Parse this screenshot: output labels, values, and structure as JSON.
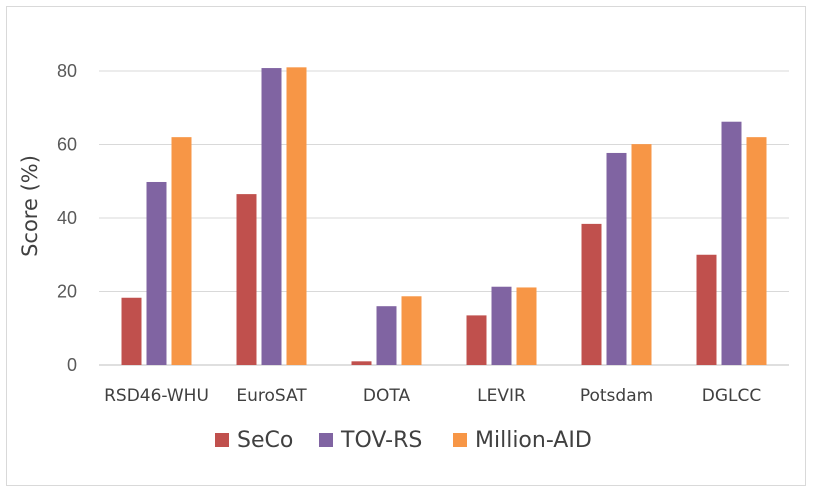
{
  "chart_data": {
    "type": "bar",
    "title": "",
    "xlabel": "",
    "ylabel": "Score (%)",
    "ylim": [
      0,
      90
    ],
    "yticks": [
      0,
      20,
      40,
      60,
      80
    ],
    "grid": true,
    "legend_position": "bottom-center",
    "categories": [
      "RSD46-WHU",
      "EuroSAT",
      "DOTA",
      "LEVIR",
      "Potsdam",
      "DGLCC"
    ],
    "series": [
      {
        "name": "SeCo",
        "color": "#c0504d",
        "values": [
          18.3,
          46.5,
          1.0,
          13.5,
          38.4,
          30.0
        ]
      },
      {
        "name": "TOV-RS",
        "color": "#8064a2",
        "values": [
          49.8,
          80.8,
          16.0,
          21.3,
          57.7,
          66.2
        ]
      },
      {
        "name": "Million-AID",
        "color": "#f79646",
        "values": [
          62.0,
          81.0,
          18.7,
          21.1,
          60.1,
          62.0
        ]
      }
    ]
  }
}
